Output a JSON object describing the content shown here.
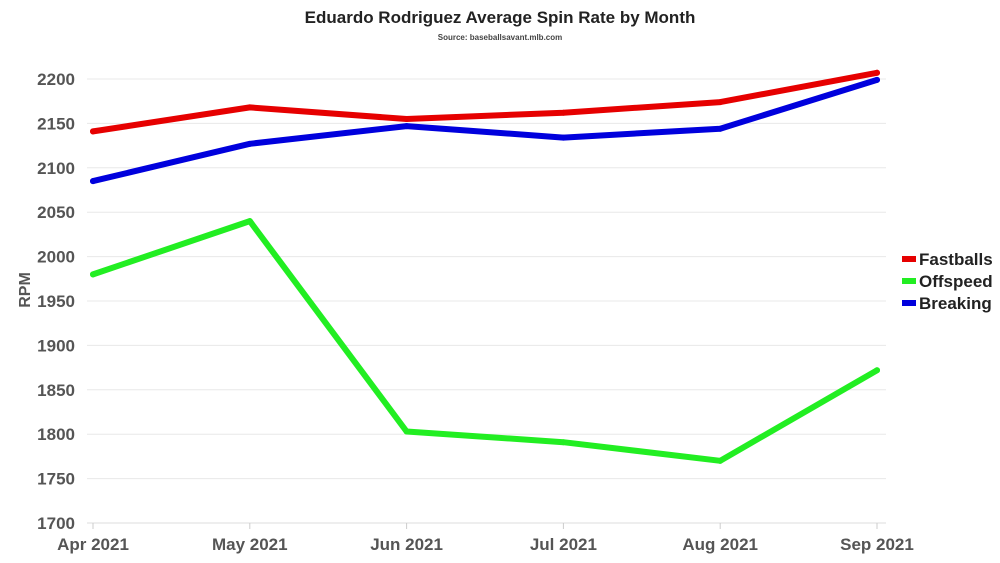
{
  "chart_data": {
    "type": "line",
    "title": "Eduardo Rodriguez Average Spin Rate by Month",
    "subtitle": "Source: baseballsavant.mlb.com",
    "xlabel": "",
    "ylabel": "RPM",
    "categories": [
      "Apr 2021",
      "May 2021",
      "Jun 2021",
      "Jul 2021",
      "Aug 2021",
      "Sep 2021"
    ],
    "ylim": [
      1700,
      2200
    ],
    "yticks": [
      "1700",
      "1750",
      "1800",
      "1850",
      "1900",
      "1950",
      "2000",
      "2050",
      "2100",
      "2150",
      "2200"
    ],
    "grid": true,
    "legend_position": "right",
    "series": [
      {
        "name": "Fastballs",
        "color": "#e60000",
        "values": [
          2141,
          2168,
          2155,
          2162,
          2174,
          2207
        ]
      },
      {
        "name": "Offspeed",
        "color": "#22ee22",
        "values": [
          1980,
          2040,
          1803,
          1791,
          1770,
          1872
        ]
      },
      {
        "name": "Breaking",
        "color": "#0000dd",
        "values": [
          2085,
          2127,
          2147,
          2134,
          2144,
          2199
        ]
      }
    ]
  }
}
